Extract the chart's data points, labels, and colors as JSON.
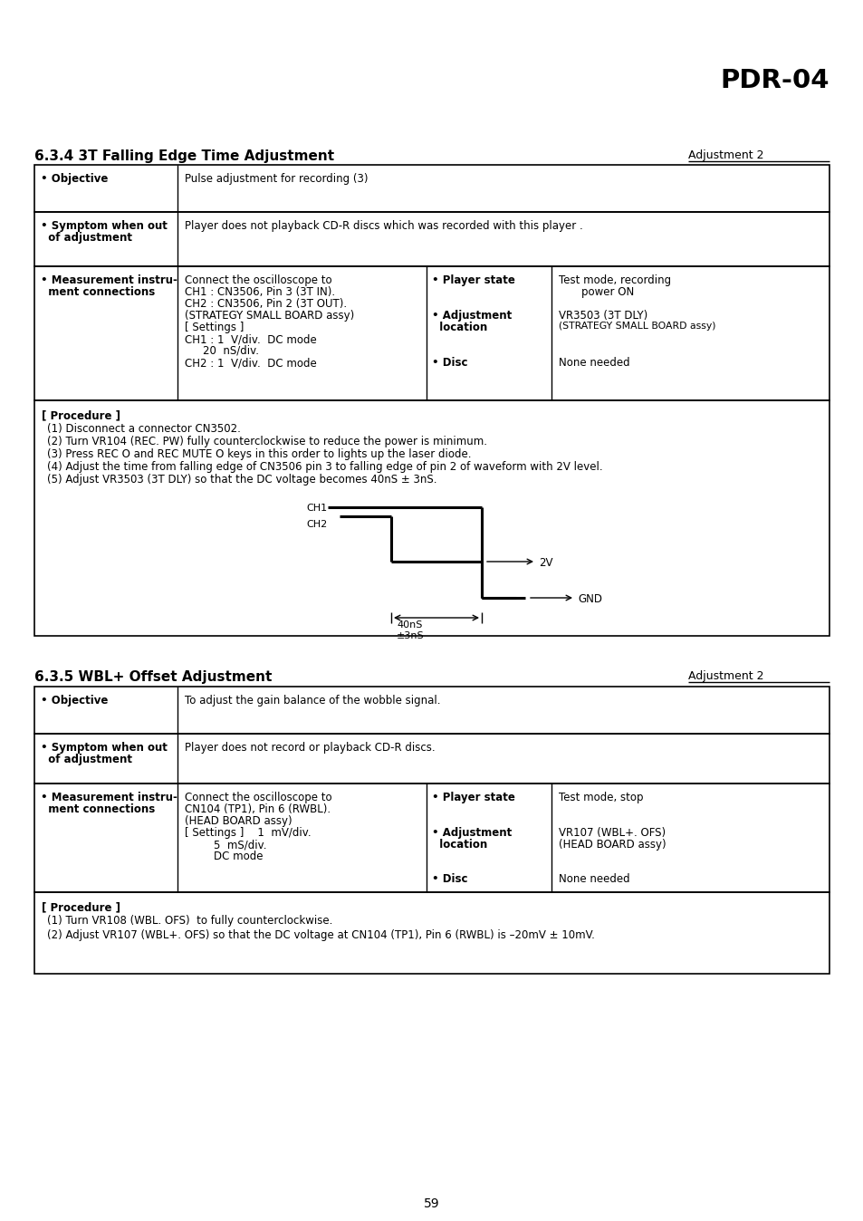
{
  "page_num": "59",
  "header_title": "PDR-04",
  "bg_color": "#ffffff",
  "section1_title": "6.3.4 3T Falling Edge Time Adjustment",
  "section1_adj": "Adjustment 2",
  "procedure1_title": "[ Procedure ]",
  "procedure1_lines": [
    "(1) Disconnect a connector CN3502.",
    "(2) Turn VR104 (REC. PW) fully counterclockwise to reduce the power is minimum.",
    "(3) Press REC O and REC MUTE O keys in this order to lights up the laser diode.",
    "(4) Adjust the time from falling edge of CN3506 pin 3 to falling edge of pin 2 of waveform with 2V level.",
    "(5) Adjust VR3503 (3T DLY) so that the DC voltage becomes 40nS ± 3nS."
  ],
  "section2_title": "6.3.5 WBL+ Offset Adjustment",
  "section2_adj": "Adjustment 2",
  "procedure2_title": "[ Procedure ]",
  "procedure2_lines": [
    "(1) Turn VR108 (WBL. OFS)  to fully counterclockwise.",
    "(2) Adjust VR107 (WBL+. OFS) so that the DC voltage at CN104 (TP1), Pin 6 (RWBL) is –20mV ± 10mV."
  ]
}
